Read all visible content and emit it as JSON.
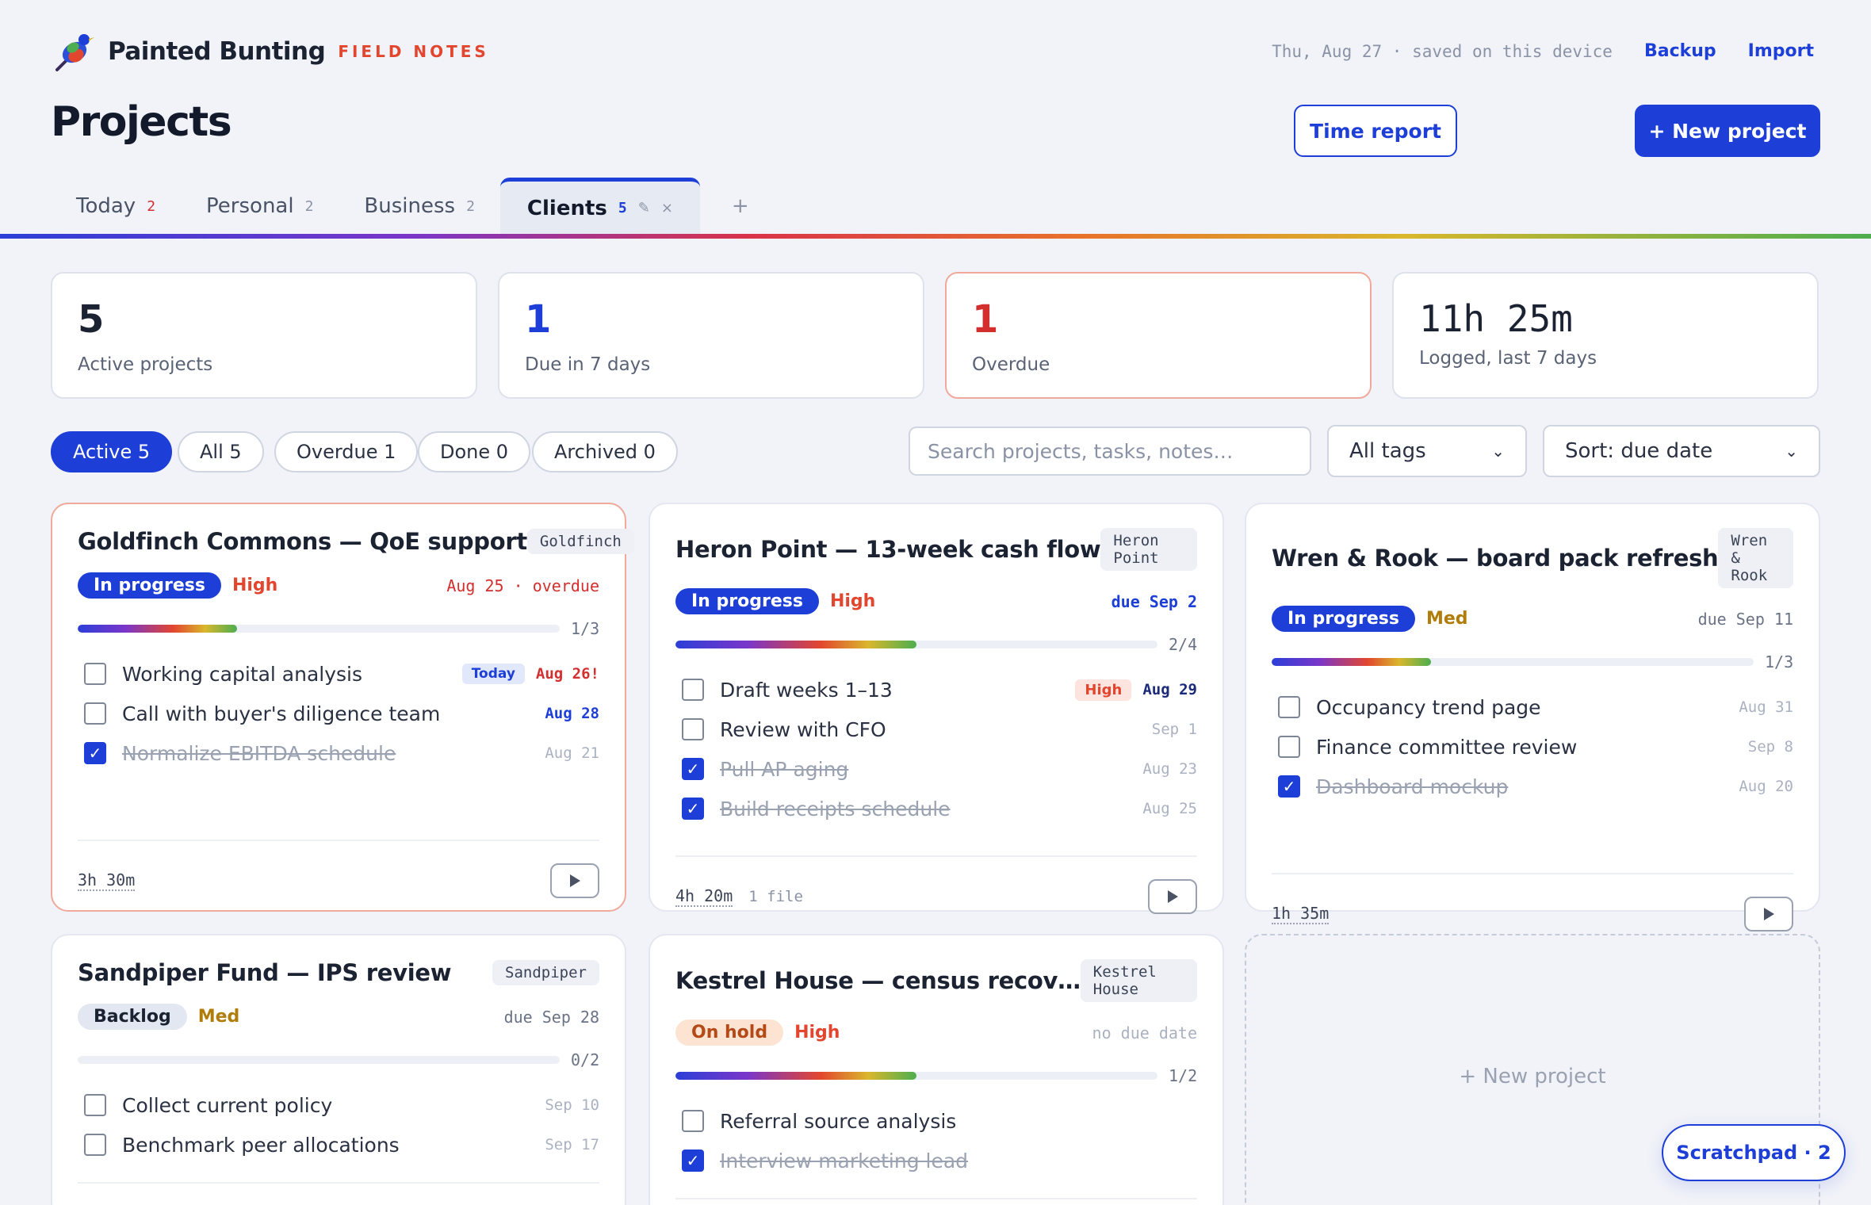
{
  "brand": {
    "name": "Painted Bunting",
    "sub": "FIELD NOTES"
  },
  "header": {
    "saved": "Thu, Aug 27 · saved on this device",
    "backup": "Backup",
    "import": "Import",
    "title": "Projects",
    "time_report": "Time report",
    "new_project": "+ New project"
  },
  "tabs": [
    {
      "label": "Today",
      "count": "2"
    },
    {
      "label": "Personal",
      "count": "2"
    },
    {
      "label": "Business",
      "count": "2"
    },
    {
      "label": "Clients",
      "count": "5",
      "edit": "✎",
      "close": "×"
    }
  ],
  "tab_add": "+",
  "stats": [
    {
      "num": "5",
      "label": "Active projects",
      "color": "#121a2b"
    },
    {
      "num": "1",
      "label": "Due in 7 days",
      "color": "#1d3fd8"
    },
    {
      "num": "1",
      "label": "Overdue",
      "color": "#d32f2f"
    },
    {
      "num": "11h 25m",
      "label": "Logged, last 7 days",
      "color": "#121a2b"
    }
  ],
  "filters": [
    "Active 5",
    "All 5",
    "Overdue 1",
    "Done 0",
    "Archived 0"
  ],
  "search": {
    "placeholder": "Search projects, tasks, notes…"
  },
  "tags_select": "All tags",
  "sort_select": "Sort: due date",
  "cards": [
    {
      "title": "Goldfinch Commons — QoE support",
      "tag": "Goldfinch",
      "status": "In progress",
      "priority": "High",
      "due": "Aug 25 · overdue",
      "progress": 0.33,
      "count": "1/3",
      "tasks": [
        {
          "text": "Working capital analysis",
          "badge": "Today",
          "date": "Aug 26!",
          "done": false
        },
        {
          "text": "Call with buyer's diligence team",
          "date": "Aug 28",
          "done": false
        },
        {
          "text": "Normalize EBITDA schedule",
          "date": "Aug 21",
          "done": true
        }
      ],
      "time": "3h 30m"
    },
    {
      "title": "Heron Point — 13-week cash flow",
      "tag": "Heron Point",
      "status": "In progress",
      "priority": "High",
      "due": "due Sep 2",
      "progress": 0.5,
      "count": "2/4",
      "tasks": [
        {
          "text": "Draft weeks 1–13",
          "badge": "High",
          "date": "Aug 29",
          "done": false
        },
        {
          "text": "Review with CFO",
          "date": "Sep 1",
          "done": false
        },
        {
          "text": "Pull AP aging",
          "date": "Aug 23",
          "done": true
        },
        {
          "text": "Build receipts schedule",
          "date": "Aug 25",
          "done": true
        }
      ],
      "time": "4h 20m",
      "files": "1 file"
    },
    {
      "title": "Wren & Rook — board pack refresh",
      "tag": "Wren & Rook",
      "status": "In progress",
      "priority": "Med",
      "due": "due Sep 11",
      "progress": 0.33,
      "count": "1/3",
      "tasks": [
        {
          "text": "Occupancy trend page",
          "date": "Aug 31",
          "done": false
        },
        {
          "text": "Finance committee review",
          "date": "Sep 8",
          "done": false
        },
        {
          "text": "Dashboard mockup",
          "date": "Aug 20",
          "done": true
        }
      ],
      "time": "1h 35m"
    },
    {
      "title": "Sandpiper Fund — IPS review",
      "tag": "Sandpiper",
      "status": "Backlog",
      "priority": "Med",
      "due": "due Sep 28",
      "progress": 0,
      "count": "0/2",
      "tasks": [
        {
          "text": "Collect current policy",
          "date": "Sep 10",
          "done": false
        },
        {
          "text": "Benchmark peer allocations",
          "date": "Sep 17",
          "done": false
        }
      ]
    },
    {
      "title": "Kestrel House — census recov…",
      "tag": "Kestrel House",
      "status": "On hold",
      "priority": "High",
      "due": "no due date",
      "progress": 0.5,
      "count": "1/2",
      "tasks": [
        {
          "text": "Referral source analysis",
          "date": "",
          "done": false
        },
        {
          "text": "Interview marketing lead",
          "date": "",
          "done": true
        }
      ]
    }
  ],
  "new_card": "+ New project",
  "scratchpad": "Scratchpad · 2"
}
